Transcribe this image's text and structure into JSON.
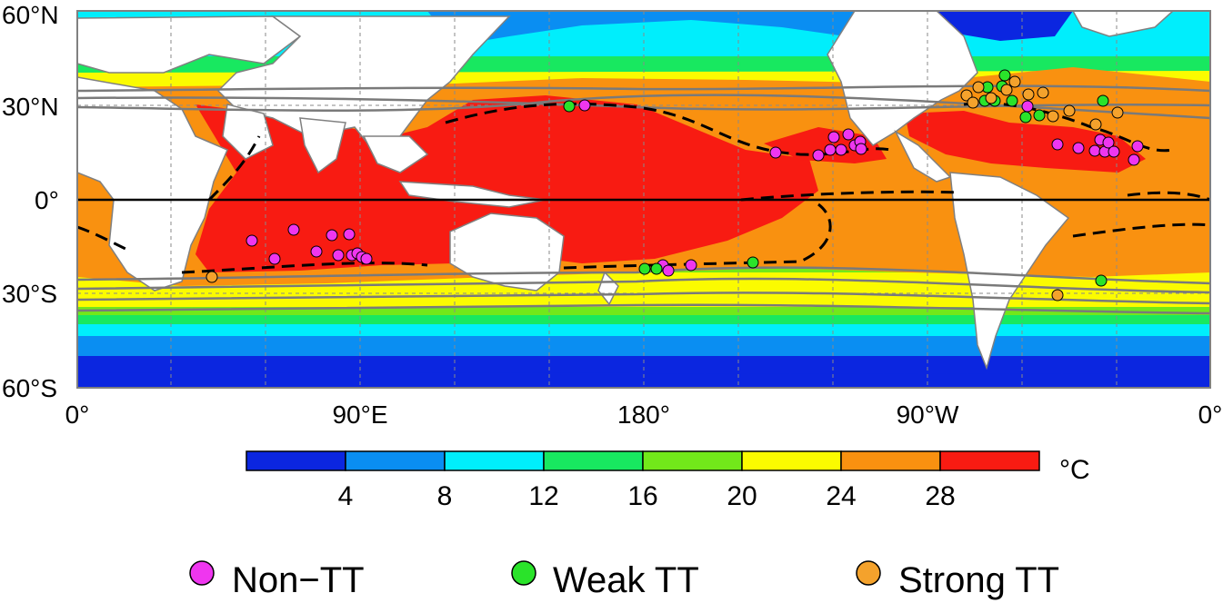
{
  "map": {
    "lat_labels": [
      "60°N",
      "30°N",
      "0°",
      "30°S",
      "60°S"
    ],
    "lon_labels": [
      "0°",
      "90°E",
      "180°",
      "90°W",
      "0°"
    ],
    "colorbar": {
      "unit": "°C",
      "ticks": [
        "4",
        "8",
        "12",
        "16",
        "20",
        "24",
        "28"
      ],
      "colors": [
        "#0b26e0",
        "#0a8ef2",
        "#00eefc",
        "#18e860",
        "#72e81a",
        "#fbfb00",
        "#f99110",
        "#f81b12"
      ]
    },
    "legend": [
      {
        "label": "Non−TT",
        "color": "#ef36ef"
      },
      {
        "label": "Weak TT",
        "color": "#2ae32a"
      },
      {
        "label": "Strong TT",
        "color": "#f4a22c"
      }
    ]
  }
}
